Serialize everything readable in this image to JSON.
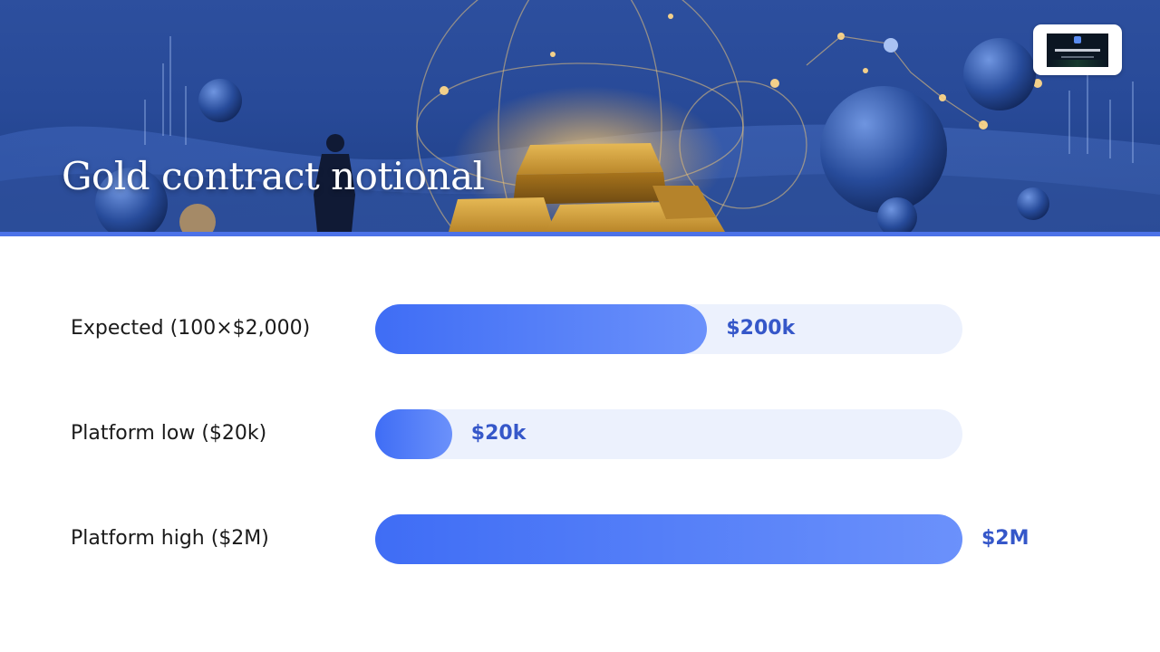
{
  "slide": {
    "title": "Gold contract notional"
  },
  "chart_data": {
    "type": "bar",
    "orientation": "horizontal",
    "title": "",
    "xlabel": "",
    "ylabel": "",
    "grid": false,
    "scale": "log",
    "xlim": [
      10000,
      2000000
    ],
    "categories": [
      "Expected (100×$2,000)",
      "Platform low ($20k)",
      "Platform high ($2M)"
    ],
    "values": [
      200000,
      20000,
      2000000
    ],
    "data_labels": [
      "$200k",
      "$20k",
      "$2M"
    ],
    "colors": {
      "bar_start": "#3f6df5",
      "bar_end": "#6b91fb",
      "track": "#ecf1fd",
      "value_text": "#3557c9",
      "accent_rule": "#4c72e8"
    }
  }
}
